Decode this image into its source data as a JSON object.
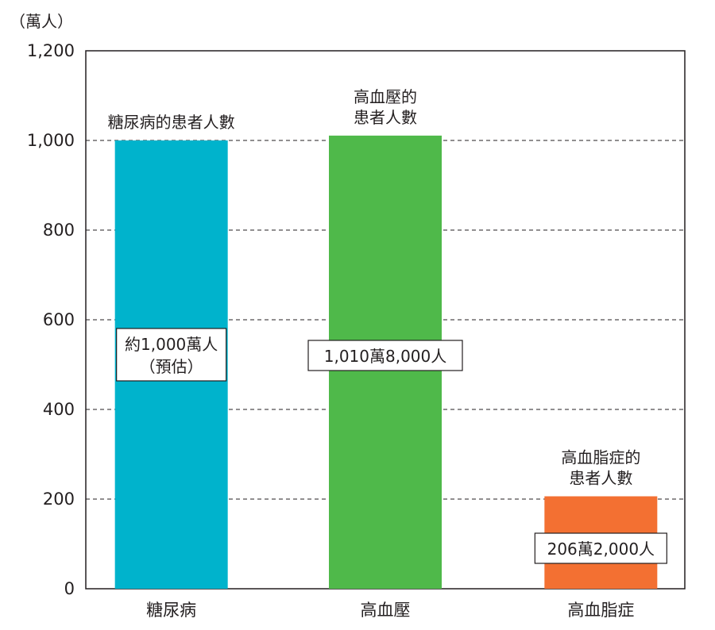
{
  "chart_data": {
    "type": "bar",
    "unit": "（萬人）",
    "ylim": [
      0,
      1200
    ],
    "yticks": [
      0,
      200,
      400,
      600,
      800,
      1000,
      1200
    ],
    "ytick_labels": [
      "0",
      "200",
      "400",
      "600",
      "800",
      "1,000",
      "1,200"
    ],
    "categories": [
      "糖尿病",
      "高血壓",
      "高血脂症"
    ],
    "values": [
      1000,
      1010.8,
      206.2
    ],
    "colors": [
      "#00b3cc",
      "#4fb94a",
      "#f37032"
    ],
    "top_labels": [
      [
        "糖尿病的患者人數"
      ],
      [
        "高血壓的",
        "患者人數"
      ],
      [
        "高血脂症的",
        "患者人數"
      ]
    ],
    "value_labels": [
      [
        "約1,000萬人",
        "（預估）"
      ],
      [
        "1,010萬8,000人"
      ],
      [
        "206萬2,000人"
      ]
    ],
    "grid": "dashed horizontal"
  }
}
